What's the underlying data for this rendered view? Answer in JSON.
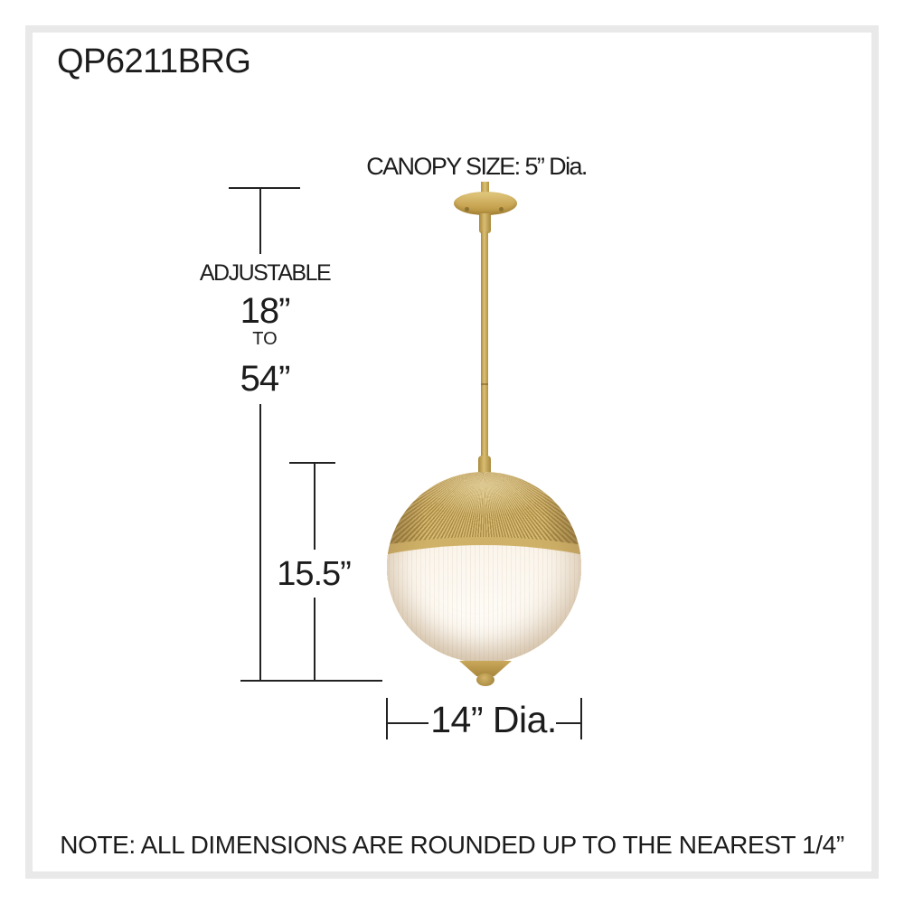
{
  "product": {
    "model": "QP6211BRG"
  },
  "labels": {
    "canopy_size": "CANOPY SIZE: 5” Dia.",
    "adjustable": "ADJUSTABLE",
    "min_height": "18”",
    "to": "TO",
    "max_height": "54”",
    "fixture_height": "15.5”",
    "diameter": "14” Dia.",
    "note": "NOTE: ALL DIMENSIONS ARE ROUNDED UP TO THE NEAREST 1/4”"
  },
  "colors": {
    "frame": "#e9e9e9",
    "line": "#222222",
    "brass": "#c8ab62",
    "brass_dark": "#a8893c",
    "brass_light": "#dcc176",
    "glass": "#fbf5ec",
    "text": "#1c1c1c"
  }
}
